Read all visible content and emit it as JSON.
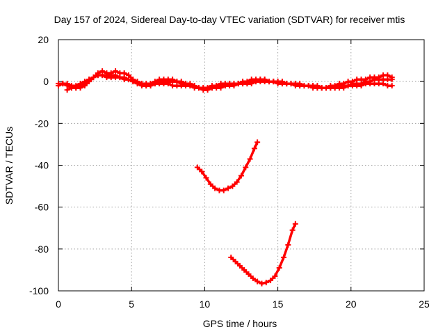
{
  "chart_data": {
    "type": "scatter",
    "title": "Day 157 of 2024, Sidereal Day-to-day VTEC variation (SDTVAR) for receiver mtis",
    "xlabel": "GPS time / hours",
    "ylabel": "SDTVAR / TECUs",
    "xlim": [
      0,
      25
    ],
    "ylim": [
      -100,
      20
    ],
    "x_ticks": [
      0,
      5,
      10,
      15,
      20,
      25
    ],
    "y_ticks": [
      -100,
      -80,
      -60,
      -40,
      -20,
      0,
      20
    ],
    "grid": true,
    "legend": "none",
    "color": "#ff0000",
    "series": [
      {
        "x": [
          0.0,
          0.3,
          0.6,
          0.9,
          1.2,
          1.5,
          1.8,
          2.1,
          2.4,
          2.7,
          3.0,
          3.3,
          3.6,
          3.9,
          4.2,
          4.5,
          4.8,
          5.1,
          5.4,
          5.7,
          6.0,
          6.3,
          6.6,
          6.9,
          7.2,
          7.5,
          7.8,
          8.1,
          8.4,
          8.7,
          9.0,
          9.3,
          9.6,
          9.9,
          10.2,
          10.5,
          10.8,
          11.1,
          11.4,
          11.7,
          12.0,
          12.3,
          12.6,
          12.9,
          13.2,
          13.5,
          13.8,
          14.1,
          14.4,
          14.7,
          15.0,
          15.3,
          15.6,
          15.9,
          16.2,
          16.5,
          16.8,
          17.1,
          17.4,
          17.7,
          18.0,
          18.3,
          18.6,
          18.9,
          19.2,
          19.5,
          19.8,
          20.1,
          20.4,
          20.7,
          21.0,
          21.3,
          21.6,
          21.9,
          22.2,
          22.5,
          22.8
        ],
        "y": [
          -1,
          -1,
          -1,
          -2,
          -2,
          -1,
          0,
          1,
          2,
          3,
          3,
          3,
          3,
          3,
          2,
          2,
          1,
          0,
          -1,
          -1,
          -2,
          -2,
          -1,
          -1,
          -1,
          -1,
          -2,
          -2,
          -2,
          -2,
          -2,
          -3,
          -3,
          -3,
          -3,
          -3,
          -3,
          -3,
          -2,
          -2,
          -2,
          -1,
          -1,
          -1,
          0,
          0,
          1,
          1,
          0,
          0,
          -1,
          -1,
          -1,
          -1,
          -1,
          -2,
          -2,
          -2,
          -2,
          -3,
          -3,
          -3,
          -3,
          -3,
          -2,
          -2,
          -2,
          -1,
          -1,
          -1,
          0,
          0,
          1,
          1,
          1,
          1,
          1
        ]
      },
      {
        "x": [
          0.0,
          0.3,
          0.6,
          0.9,
          1.2,
          1.5,
          1.8,
          2.1,
          2.4,
          2.7,
          3.0,
          3.3,
          3.6,
          3.9,
          4.2,
          4.5,
          4.8,
          5.1,
          5.4,
          5.7,
          6.0,
          6.3,
          6.6,
          6.9,
          7.2,
          7.5,
          7.8,
          8.1,
          8.4,
          8.7,
          9.0,
          9.3,
          9.6,
          9.9,
          10.2,
          10.5,
          10.8,
          11.1,
          11.4,
          11.7,
          12.0,
          12.3,
          12.6,
          12.9,
          13.2,
          13.5,
          13.8,
          14.1,
          14.4,
          14.7,
          15.0,
          15.3,
          15.6,
          15.9,
          16.2,
          16.5,
          16.8,
          17.1,
          17.4,
          17.7,
          18.0,
          18.3,
          18.6,
          18.9,
          19.2,
          19.5,
          19.8,
          20.1,
          20.4,
          20.7,
          21.0,
          21.3,
          21.6,
          21.9,
          22.2,
          22.5,
          22.8
        ],
        "y": [
          -2,
          -1,
          -2,
          -3,
          -3,
          -2,
          -1,
          1,
          2,
          4,
          5,
          4,
          4,
          5,
          4,
          4,
          3,
          1,
          0,
          -1,
          -1,
          -1,
          0,
          1,
          1,
          1,
          1,
          0,
          0,
          -1,
          -1,
          -2,
          -3,
          -4,
          -4,
          -3,
          -2,
          -1,
          -1,
          -1,
          -1,
          -1,
          0,
          0,
          1,
          1,
          1,
          1,
          0,
          0,
          0,
          -1,
          -1,
          -1,
          -2,
          -2,
          -2,
          -2,
          -3,
          -3,
          -3,
          -3,
          -2,
          -2,
          -1,
          -1,
          0,
          0,
          1,
          1,
          1,
          2,
          2,
          2,
          3,
          3,
          2
        ]
      },
      {
        "x": [
          0.6,
          0.9,
          1.2,
          1.5,
          1.8,
          2.1,
          2.4,
          2.7,
          3.0,
          3.3,
          3.6,
          3.9,
          4.2,
          4.5,
          4.8,
          5.1,
          5.4,
          5.7,
          6.0,
          6.3,
          6.6,
          6.9,
          7.2,
          7.5,
          7.8,
          8.1,
          8.4,
          8.7,
          9.0,
          9.3,
          9.6,
          9.9,
          10.2,
          10.5,
          10.8,
          11.1,
          11.4,
          11.7,
          12.0,
          12.3,
          12.6,
          12.9,
          13.2,
          13.5,
          13.8,
          14.1,
          14.4,
          14.7,
          15.0,
          15.3,
          15.6,
          15.9,
          16.2,
          16.5,
          16.8,
          17.1,
          17.4,
          17.7,
          18.0,
          18.3,
          18.6,
          18.9,
          19.2,
          19.5,
          19.8,
          20.1,
          20.4,
          20.7,
          21.0,
          21.3,
          21.6,
          21.9,
          22.2,
          22.5,
          22.8
        ],
        "y": [
          -4,
          -3,
          -3,
          -3,
          -2,
          0,
          2,
          3,
          3,
          2,
          2,
          2,
          2,
          1,
          1,
          0,
          -1,
          -2,
          -2,
          -2,
          -1,
          0,
          0,
          0,
          0,
          0,
          -1,
          -1,
          -2,
          -2,
          -3,
          -3,
          -3,
          -2,
          -2,
          -2,
          -2,
          -1,
          -1,
          -1,
          -1,
          -1,
          -1,
          0,
          0,
          0,
          0,
          0,
          0,
          0,
          -1,
          -1,
          -1,
          -1,
          -2,
          -2,
          -2,
          -2,
          -3,
          -3,
          -3,
          -3,
          -3,
          -3,
          -2,
          -2,
          -2,
          -2,
          -1,
          -1,
          -1,
          -1,
          -1,
          -2,
          -2
        ]
      },
      {
        "x": [
          9.5,
          9.8,
          10.1,
          10.4,
          10.7,
          11.0,
          11.3,
          11.6,
          11.9,
          12.2,
          12.5,
          12.8,
          13.1,
          13.4,
          13.6
        ],
        "y": [
          -41,
          -43,
          -46,
          -49,
          -51,
          -52,
          -52,
          -51,
          -50,
          -48,
          -45,
          -41,
          -37,
          -32,
          -29
        ]
      },
      {
        "x": [
          11.8,
          12.1,
          12.4,
          12.7,
          13.0,
          13.3,
          13.6,
          13.9,
          14.2,
          14.5,
          14.8,
          15.1,
          15.4,
          15.7,
          16.0,
          16.2
        ],
        "y": [
          -84,
          -86,
          -88,
          -90,
          -92,
          -94,
          -95.5,
          -96.5,
          -96,
          -95,
          -93,
          -89,
          -84,
          -78,
          -71,
          -68
        ]
      }
    ]
  }
}
